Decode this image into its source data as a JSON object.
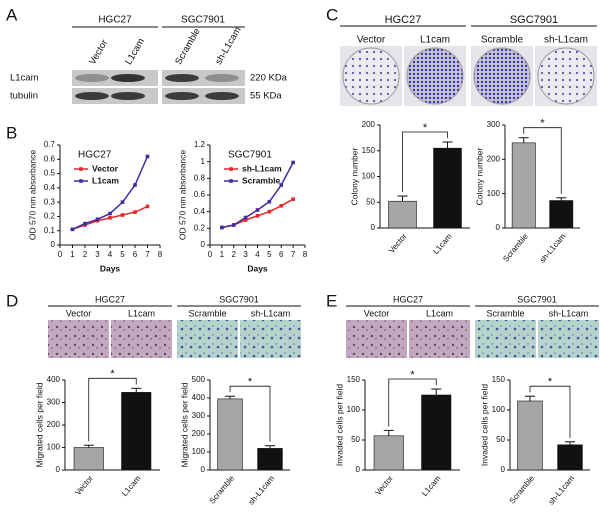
{
  "panels": {
    "A": {
      "letter": "A",
      "groups": [
        "HGC27",
        "SGC7901"
      ],
      "lanes": [
        "Vector",
        "L1cam",
        "Scramble",
        "sh-L1cam"
      ],
      "rows": [
        "L1cam",
        "tubulin"
      ],
      "sizes": [
        "220 KDa",
        "55 KDa"
      ]
    },
    "B": {
      "letter": "B"
    },
    "C": {
      "letter": "C",
      "groups": [
        "HGC27",
        "SGC7901"
      ],
      "lanes": [
        "Vector",
        "L1cam",
        "Scramble",
        "sh-L1cam"
      ]
    },
    "D": {
      "letter": "D",
      "groups": [
        "HGC27",
        "SGC7901"
      ],
      "lanes": [
        "Vector",
        "L1cam",
        "Scramble",
        "sh-L1cam"
      ]
    },
    "E": {
      "letter": "E",
      "groups": [
        "HGC27",
        "SGC7901"
      ],
      "lanes": [
        "Vector",
        "L1cam",
        "Scramble",
        "sh-L1cam"
      ]
    }
  },
  "chart_data": [
    {
      "type": "line",
      "title": "HGC27",
      "x": [
        1,
        2,
        3,
        4,
        5,
        6,
        7
      ],
      "series": [
        {
          "name": "Vector",
          "color": "#e8262a",
          "values": [
            0.11,
            0.14,
            0.17,
            0.19,
            0.21,
            0.23,
            0.27
          ]
        },
        {
          "name": "L1cam",
          "color": "#3a2fa0",
          "values": [
            0.11,
            0.15,
            0.18,
            0.22,
            0.3,
            0.42,
            0.62
          ]
        }
      ],
      "xlim": [
        0,
        8
      ],
      "xticks": [
        0,
        1,
        2,
        3,
        4,
        5,
        6,
        7,
        8
      ],
      "ylim": [
        0,
        0.7
      ],
      "yticks": [
        0,
        0.1,
        0.2,
        0.3,
        0.4,
        0.5,
        0.6,
        0.7
      ],
      "xlabel": "Days",
      "ylabel": "OD 570 nm absorbance"
    },
    {
      "type": "line",
      "title": "SGC7901",
      "x": [
        1,
        2,
        3,
        4,
        5,
        6,
        7
      ],
      "series": [
        {
          "name": "sh-L1cam",
          "color": "#e8262a",
          "values": [
            0.21,
            0.24,
            0.3,
            0.35,
            0.4,
            0.47,
            0.55
          ]
        },
        {
          "name": "Scramble",
          "color": "#3a2fa0",
          "values": [
            0.21,
            0.24,
            0.33,
            0.42,
            0.52,
            0.72,
            0.99
          ]
        }
      ],
      "xlim": [
        0,
        8
      ],
      "xticks": [
        0,
        1,
        2,
        3,
        4,
        5,
        6,
        7,
        8
      ],
      "ylim": [
        0,
        1.2
      ],
      "yticks": [
        0,
        0.2,
        0.4,
        0.6,
        0.8,
        1,
        1.2
      ],
      "xlabel": "Days",
      "ylabel": "OD 570 nm absorbance"
    },
    {
      "type": "bar",
      "categories": [
        "Vector",
        "L1cam"
      ],
      "values": [
        52,
        155
      ],
      "errors": [
        10,
        12
      ],
      "colors": [
        "#a6a6a6",
        "#111111"
      ],
      "ylim": [
        0,
        200
      ],
      "yticks": [
        0,
        50,
        100,
        150,
        200
      ],
      "ylabel": "Colony number",
      "annotation": "*"
    },
    {
      "type": "bar",
      "categories": [
        "Scramble",
        "sh-L1cam"
      ],
      "values": [
        248,
        80
      ],
      "errors": [
        15,
        8
      ],
      "colors": [
        "#a6a6a6",
        "#111111"
      ],
      "ylim": [
        0,
        300
      ],
      "yticks": [
        0,
        100,
        200,
        300
      ],
      "ylabel": "Colony number",
      "annotation": "*"
    },
    {
      "type": "bar",
      "categories": [
        "Vector",
        "L1cam"
      ],
      "values": [
        100,
        345
      ],
      "errors": [
        10,
        18
      ],
      "colors": [
        "#a6a6a6",
        "#111111"
      ],
      "ylim": [
        0,
        400
      ],
      "yticks": [
        0,
        100,
        200,
        300,
        400
      ],
      "ylabel": "Migrated cells per field",
      "annotation": "*"
    },
    {
      "type": "bar",
      "categories": [
        "Scramble",
        "sh-L1cam"
      ],
      "values": [
        395,
        120
      ],
      "errors": [
        15,
        15
      ],
      "colors": [
        "#a6a6a6",
        "#111111"
      ],
      "ylim": [
        0,
        500
      ],
      "yticks": [
        0,
        100,
        200,
        300,
        400,
        500
      ],
      "ylabel": "Migrated cells per field",
      "annotation": "*"
    },
    {
      "type": "bar",
      "categories": [
        "Vector",
        "L1cam"
      ],
      "values": [
        57,
        125
      ],
      "errors": [
        9,
        10
      ],
      "colors": [
        "#a6a6a6",
        "#111111"
      ],
      "ylim": [
        0,
        150
      ],
      "yticks": [
        0,
        50,
        100,
        150
      ],
      "ylabel": "Invaded cells per field",
      "annotation": "*"
    },
    {
      "type": "bar",
      "categories": [
        "Scramble",
        "sh-L1cam"
      ],
      "values": [
        115,
        42
      ],
      "errors": [
        8,
        5
      ],
      "colors": [
        "#a6a6a6",
        "#111111"
      ],
      "ylim": [
        0,
        150
      ],
      "yticks": [
        0,
        50,
        100,
        150
      ],
      "ylabel": "Invaded cells per field",
      "annotation": "*"
    }
  ]
}
